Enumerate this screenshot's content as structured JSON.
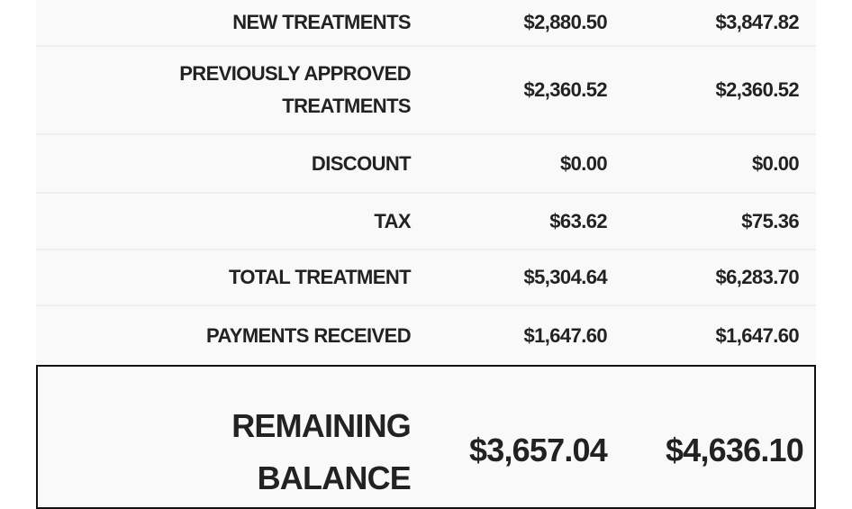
{
  "rows": [
    {
      "label": "NEW TREATMENTS",
      "col1": "$2,880.50",
      "col2": "$3,847.82"
    },
    {
      "label": "PREVIOUSLY APPROVED TREATMENTS",
      "col1": "$2,360.52",
      "col2": "$2,360.52"
    },
    {
      "label": "DISCOUNT",
      "col1": "$0.00",
      "col2": "$0.00"
    },
    {
      "label": "TAX",
      "col1": "$63.62",
      "col2": "$75.36"
    },
    {
      "label": "TOTAL TREATMENT",
      "col1": "$5,304.64",
      "col2": "$6,283.70"
    },
    {
      "label": "PAYMENTS RECEIVED",
      "col1": "$1,647.60",
      "col2": "$1,647.60"
    }
  ],
  "remaining": {
    "label": "REMAINING BALANCE",
    "col1": "$3,657.04",
    "col2": "$4,636.10"
  }
}
